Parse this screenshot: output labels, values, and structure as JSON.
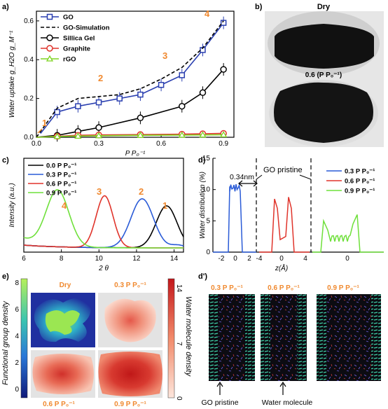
{
  "panel_labels": {
    "a": "a)",
    "b": "b)",
    "c": "c)",
    "d": "d)",
    "dp": "d')",
    "e": "e)"
  },
  "colors": {
    "go": "#2a3fb0",
    "sim": "#000000",
    "silica": "#000000",
    "graphite": "#e0342b",
    "rgo": "#7ed321",
    "orange": "#f0892f",
    "p03": "#2a5bd7",
    "p06": "#e0342b",
    "p09": "#6fe03b",
    "p00": "#000000"
  },
  "photo_b": {
    "top_label": "Dry",
    "bottom_label": "0.6 (P P₀⁻¹)"
  },
  "chart_data": [
    {
      "id": "a",
      "type": "scatter",
      "xlabel": "P P₀⁻¹",
      "ylabel": "Water uptake g_H2O g_M⁻¹",
      "xlim": [
        0,
        0.95
      ],
      "ylim": [
        0,
        0.65
      ],
      "xticks": [
        "0.0",
        "0.3",
        "0.6",
        "0.9"
      ],
      "yticks": [
        "0.0",
        "0.2",
        "0.4",
        "0.6"
      ],
      "legend_position": "top-left",
      "series": [
        {
          "name": "GO",
          "style": "square-line",
          "x": [
            0.02,
            0.1,
            0.2,
            0.3,
            0.4,
            0.5,
            0.6,
            0.7,
            0.8,
            0.9
          ],
          "y": [
            0.02,
            0.13,
            0.16,
            0.18,
            0.2,
            0.22,
            0.27,
            0.32,
            0.45,
            0.59
          ]
        },
        {
          "name": "GO-Simulation",
          "style": "dashed",
          "x": [
            0.0,
            0.1,
            0.2,
            0.3,
            0.4,
            0.5,
            0.6,
            0.7,
            0.8,
            0.9
          ],
          "y": [
            0.0,
            0.15,
            0.2,
            0.21,
            0.22,
            0.25,
            0.3,
            0.36,
            0.46,
            0.6
          ]
        },
        {
          "name": "Sillica Gel",
          "style": "circle-line",
          "x": [
            0.0,
            0.1,
            0.2,
            0.3,
            0.5,
            0.7,
            0.8,
            0.9
          ],
          "y": [
            0.0,
            0.01,
            0.03,
            0.05,
            0.1,
            0.16,
            0.23,
            0.35
          ]
        },
        {
          "name": "Graphite",
          "style": "circle-line",
          "x": [
            0.0,
            0.1,
            0.2,
            0.3,
            0.5,
            0.7,
            0.8,
            0.9
          ],
          "y": [
            0.0,
            0.005,
            0.01,
            0.012,
            0.014,
            0.016,
            0.018,
            0.02
          ]
        },
        {
          "name": "rGO",
          "style": "triangle-line",
          "x": [
            0.0,
            0.1,
            0.2,
            0.3,
            0.5,
            0.7,
            0.8,
            0.9
          ],
          "y": [
            0.0,
            0.004,
            0.006,
            0.008,
            0.01,
            0.011,
            0.012,
            0.013
          ]
        }
      ],
      "annotations": [
        "1",
        "2",
        "3",
        "4"
      ]
    },
    {
      "id": "c",
      "type": "line",
      "xlabel": "2 θ",
      "ylabel": "Intensity (a.u.)",
      "xlim": [
        6,
        14.5
      ],
      "xticks": [
        "6",
        "8",
        "10",
        "12",
        "14"
      ],
      "legend_position": "top-left",
      "series": [
        {
          "name": "0.0 P P₀⁻¹",
          "peak": 13.6
        },
        {
          "name": "0.3 P P₀⁻¹",
          "peak": 12.3
        },
        {
          "name": "0.6 P P₀⁻¹",
          "peak": 10.3
        },
        {
          "name": "0.9 P P₀⁻¹",
          "peak": 7.8
        }
      ],
      "annotations": [
        "1",
        "2",
        "3",
        "4"
      ]
    },
    {
      "id": "d",
      "type": "line",
      "xlabel": "z(Å)",
      "ylabel": "Water distribution (%)",
      "ylim": [
        0,
        15
      ],
      "yticks": [
        "0",
        "5",
        "10",
        "15"
      ],
      "xticks": [
        "-2",
        "0",
        "2",
        "-4",
        "0",
        "4",
        "0"
      ],
      "annotations": [
        "0.34nm",
        "GO pristine"
      ],
      "series": [
        {
          "name": "0.3 P P₀⁻¹"
        },
        {
          "name": "0.6 P P₀⁻¹"
        },
        {
          "name": "0.9 P P₀⁻¹"
        }
      ]
    },
    {
      "id": "e",
      "type": "heatmap",
      "left_label": "Functional group density",
      "right_label": "Water molecule density",
      "left_ticks": [
        "8",
        "6",
        "4",
        "2",
        "0"
      ],
      "right_ticks": [
        "14",
        "7",
        "0"
      ],
      "maps": [
        "Dry",
        "0.3 P P₀⁻¹",
        "0.6 P P₀⁻¹",
        "0.9 P P₀⁻¹"
      ]
    }
  ],
  "panel_dp": {
    "labels": [
      "0.3 P P₀⁻¹",
      "0.6 P P₀⁻¹",
      "0.9 P P₀⁻¹"
    ],
    "captions": [
      "GO pristine",
      "Water molecule"
    ]
  }
}
